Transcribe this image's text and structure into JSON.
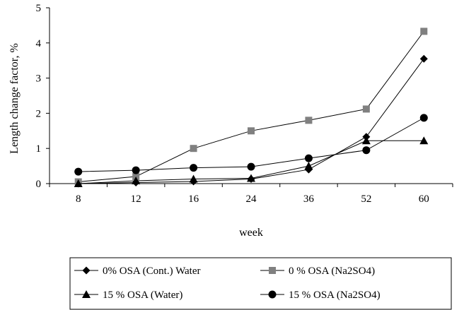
{
  "chart_data": {
    "type": "line",
    "title": "",
    "xlabel": "week",
    "ylabel": "Length change factor, %",
    "categories": [
      "8",
      "12",
      "16",
      "24",
      "36",
      "52",
      "60"
    ],
    "ylim": [
      0,
      5
    ],
    "yticks": [
      0,
      1,
      2,
      3,
      4,
      5
    ],
    "grid": false,
    "legend_position": "bottom",
    "series": [
      {
        "name": "0% OSA (Cont.) Water",
        "marker": "diamond",
        "color": "#000000",
        "values": [
          0.0,
          0.03,
          0.06,
          0.13,
          0.4,
          1.33,
          3.55
        ]
      },
      {
        "name": "0 % OSA (Na2SO4)",
        "marker": "square",
        "color": "#808080",
        "values": [
          0.05,
          0.2,
          1.0,
          1.5,
          1.8,
          2.12,
          4.33
        ]
      },
      {
        "name": "15 % OSA (Water)",
        "marker": "triangle",
        "color": "#000000",
        "values": [
          0.0,
          0.08,
          0.13,
          0.15,
          0.5,
          1.22,
          1.22
        ]
      },
      {
        "name": "15 % OSA (Na2SO4)",
        "marker": "circle",
        "color": "#000000",
        "values": [
          0.34,
          0.38,
          0.45,
          0.48,
          0.72,
          0.95,
          1.87
        ]
      }
    ]
  }
}
